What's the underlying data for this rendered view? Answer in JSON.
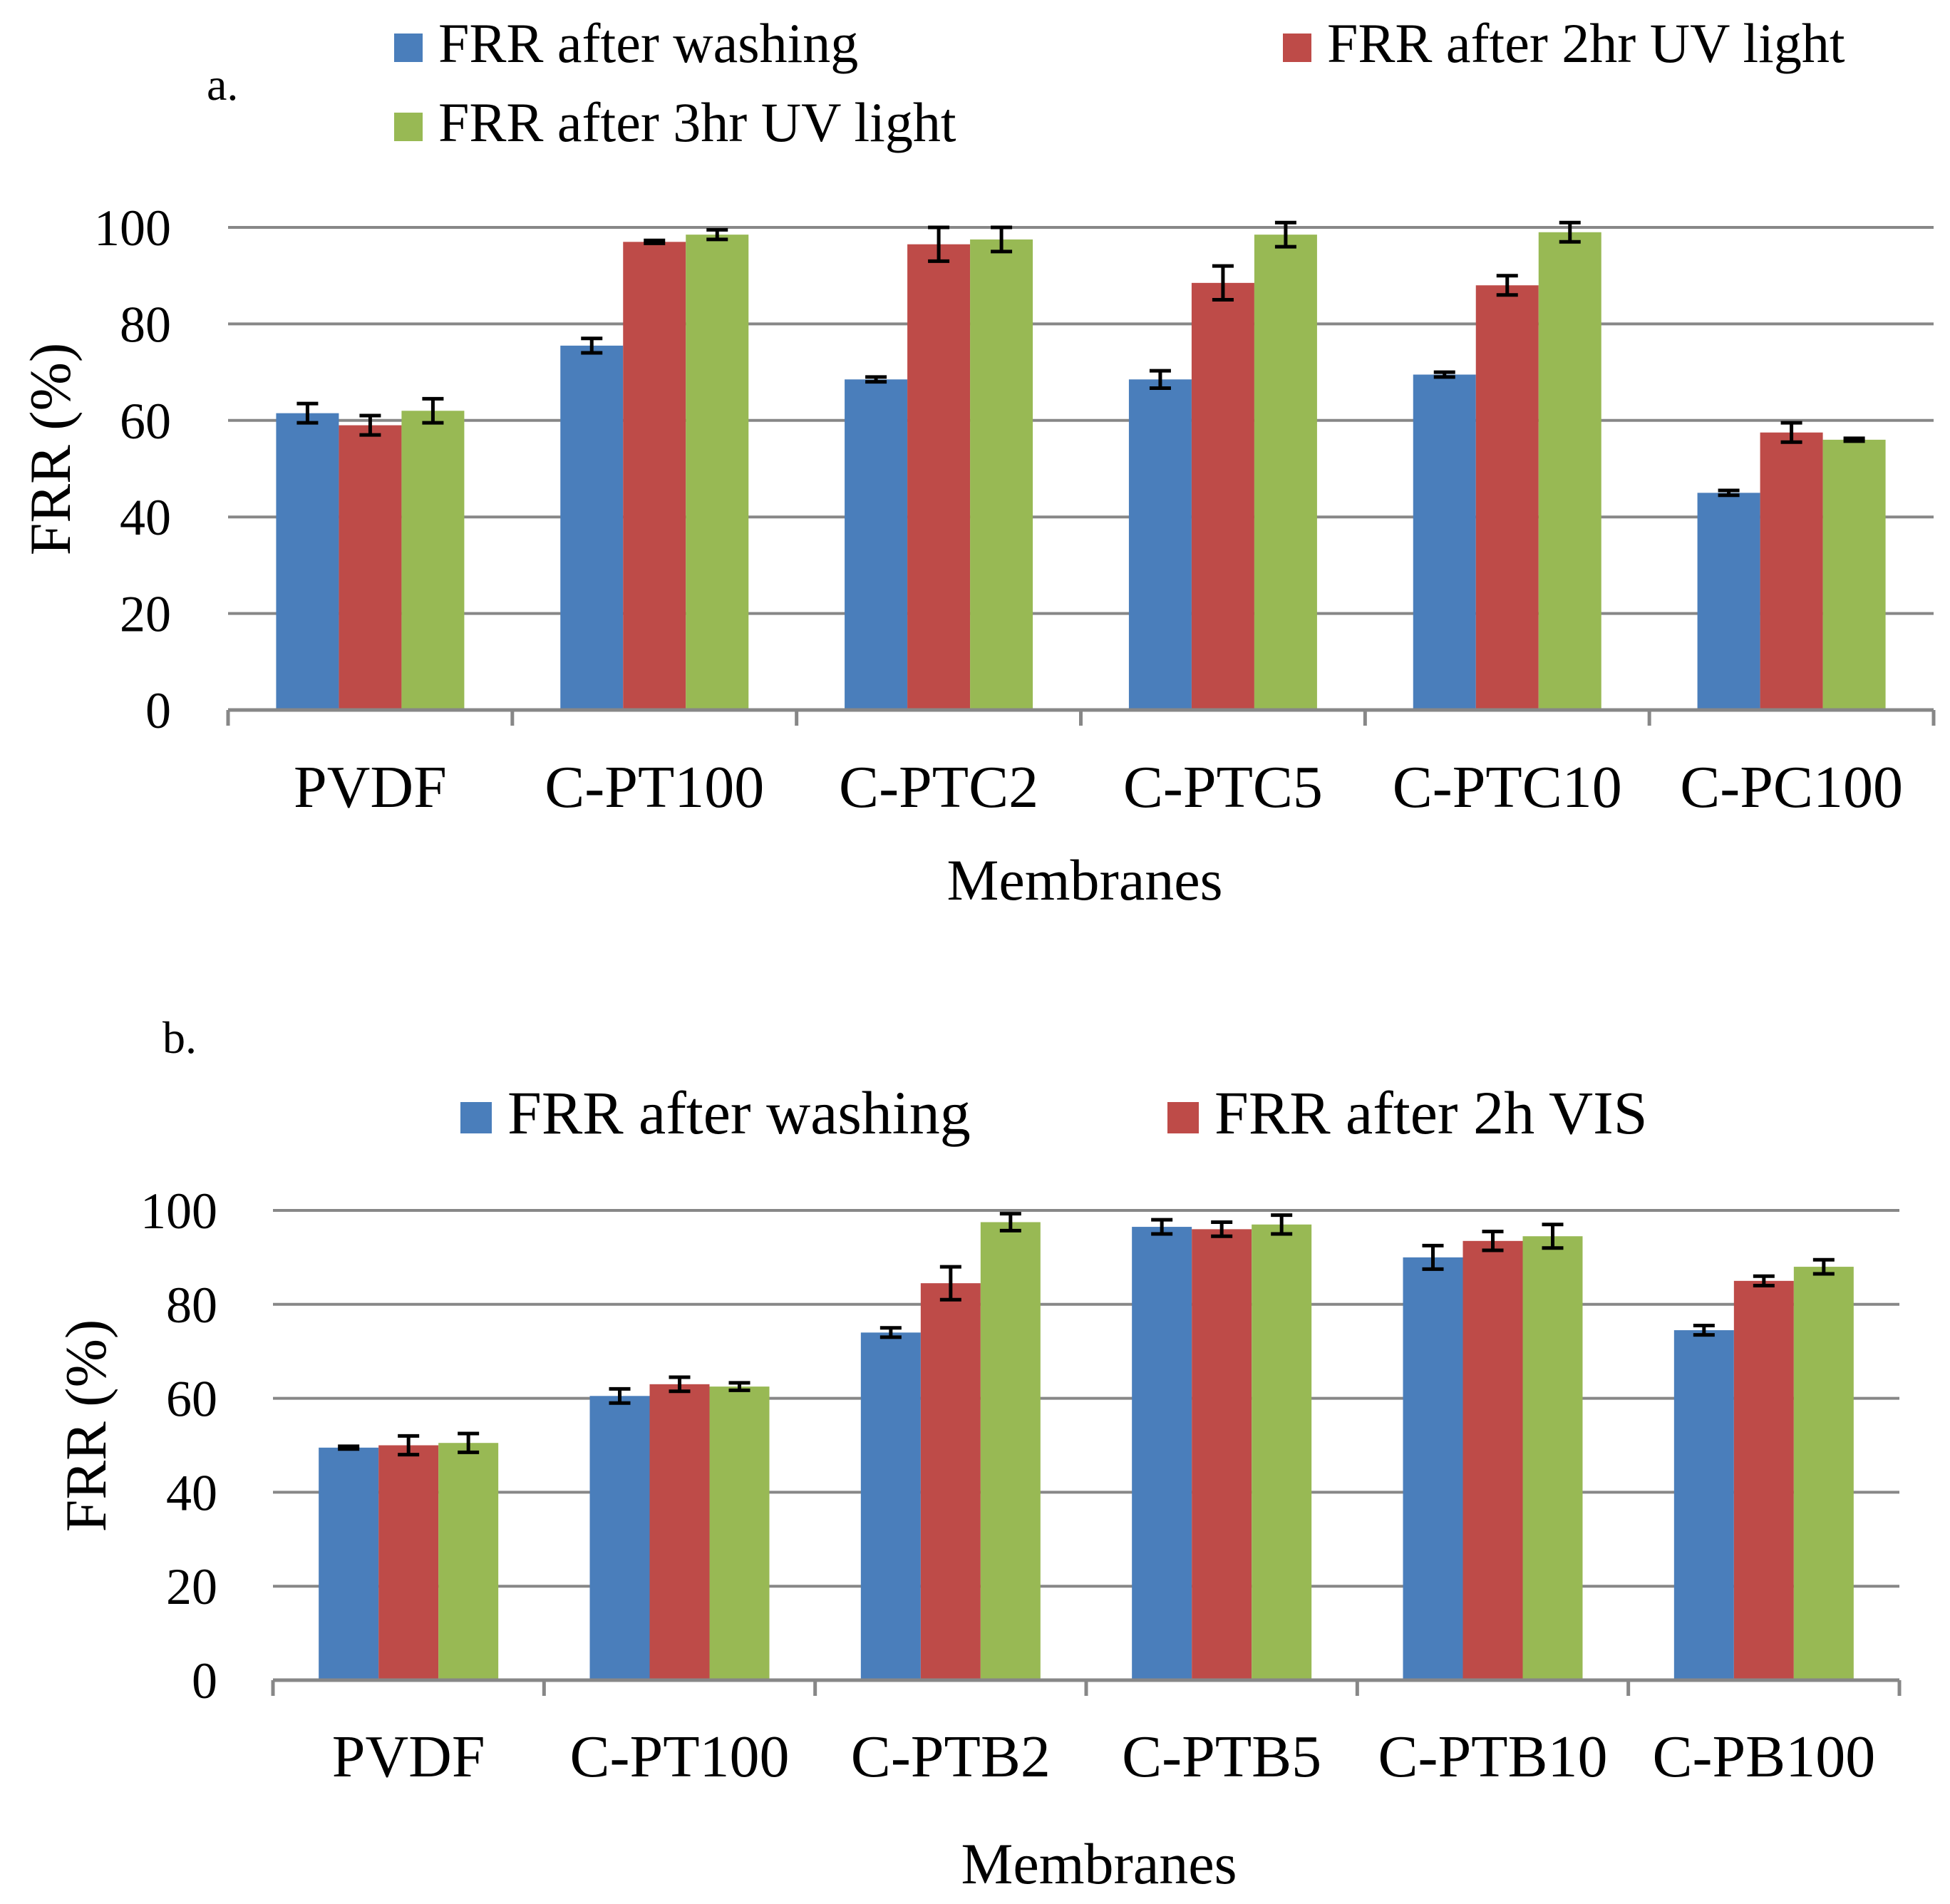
{
  "colors": {
    "blue": "#4a7ebb",
    "red": "#be4b48",
    "green": "#98b954",
    "gridline": "#878787",
    "axis": "#878787",
    "errorbar": "#000000"
  },
  "chart_data": [
    {
      "type": "bar",
      "panel_label": "a.",
      "title": "",
      "xlabel": "Membranes",
      "ylabel": "FRR (%)",
      "ylim": [
        0,
        100
      ],
      "yticks": [
        0,
        20,
        40,
        60,
        80,
        100
      ],
      "grid": true,
      "legend_position": "top",
      "categories": [
        "PVDF",
        "C-PT100",
        "C-PTC2",
        "C-PTC5",
        "C-PTC10",
        "C-PC100"
      ],
      "series": [
        {
          "name": "FRR after washing",
          "color": "#4a7ebb",
          "values": [
            61.5,
            75.5,
            68.5,
            68.5,
            69.5,
            45.0
          ],
          "errors": [
            2.0,
            1.5,
            0.5,
            1.8,
            0.5,
            0.5
          ]
        },
        {
          "name": "FRR after 2hr UV light",
          "color": "#be4b48",
          "values": [
            59.0,
            97.0,
            96.5,
            88.5,
            88.0,
            57.5
          ],
          "errors": [
            2.0,
            0.3,
            3.5,
            3.5,
            2.0,
            2.0
          ]
        },
        {
          "name": "FRR after 3hr UV light",
          "color": "#98b954",
          "values": [
            62.0,
            98.5,
            97.5,
            98.5,
            99.0,
            56.0
          ],
          "errors": [
            2.5,
            1.0,
            2.5,
            2.5,
            2.0,
            0.3
          ]
        }
      ]
    },
    {
      "type": "bar",
      "panel_label": "b.",
      "title": "",
      "xlabel": "Membranes",
      "ylabel": "FRR (%)",
      "ylim": [
        0,
        100
      ],
      "yticks": [
        0,
        20,
        40,
        60,
        80,
        100
      ],
      "grid": true,
      "legend_position": "top",
      "categories": [
        "PVDF",
        "C-PT100",
        "C-PTB2",
        "C-PTB5",
        "C-PTB10",
        "C-PB100"
      ],
      "series": [
        {
          "name": "FRR after washing",
          "color": "#4a7ebb",
          "values": [
            49.5,
            60.5,
            74.0,
            96.5,
            90.0,
            74.5
          ],
          "errors": [
            0.3,
            1.5,
            1.0,
            1.5,
            2.5,
            1.0
          ]
        },
        {
          "name": "FRR after 2h VIS",
          "color": "#be4b48",
          "values": [
            50.0,
            63.0,
            84.5,
            96.0,
            93.5,
            85.0
          ],
          "errors": [
            2.0,
            1.5,
            3.5,
            1.5,
            2.0,
            1.0
          ]
        },
        {
          "name": "",
          "color": "#98b954",
          "values": [
            50.5,
            62.5,
            97.5,
            97.0,
            94.5,
            88.0
          ],
          "errors": [
            2.0,
            0.8,
            1.8,
            2.0,
            2.5,
            1.5
          ]
        }
      ]
    }
  ]
}
